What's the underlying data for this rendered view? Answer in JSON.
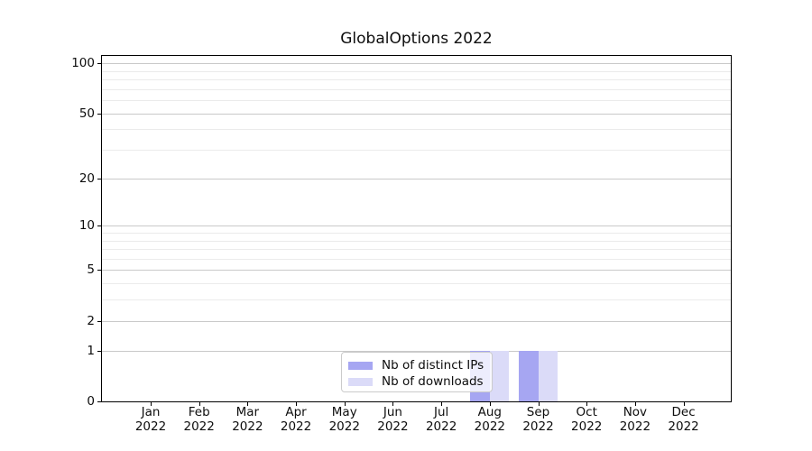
{
  "chart_data": {
    "type": "bar",
    "title": "GlobalOptions 2022",
    "categories": [
      "Jan",
      "Feb",
      "Mar",
      "Apr",
      "May",
      "Jun",
      "Jul",
      "Aug",
      "Sep",
      "Oct",
      "Nov",
      "Dec"
    ],
    "category_year": "2022",
    "series": [
      {
        "name": "Nb of distinct IPs",
        "color": "#a6a6f2",
        "values": [
          0,
          0,
          0,
          0,
          0,
          0,
          0,
          1,
          1,
          0,
          0,
          0
        ]
      },
      {
        "name": "Nb of downloads",
        "color": "#dbdbf8",
        "values": [
          0,
          0,
          0,
          0,
          0,
          0,
          0,
          1,
          1,
          0,
          0,
          0
        ]
      }
    ],
    "xlabel": "",
    "ylabel": "",
    "y_scale": "log1p",
    "y_major_ticks": [
      100,
      50,
      20,
      10,
      5,
      2,
      1,
      0
    ],
    "y_minor_ticks": [
      90,
      80,
      70,
      60,
      40,
      30,
      9,
      8,
      7,
      6,
      4,
      3
    ],
    "ylim": [
      0,
      111
    ],
    "grid": true,
    "legend_position": "lower center",
    "colors": {
      "grid_major": "#c9c9c9",
      "grid_minor": "#ebebeb",
      "axis": "#000000",
      "legend_border": "#cbcbcb",
      "text": "#0d0d0d"
    }
  }
}
